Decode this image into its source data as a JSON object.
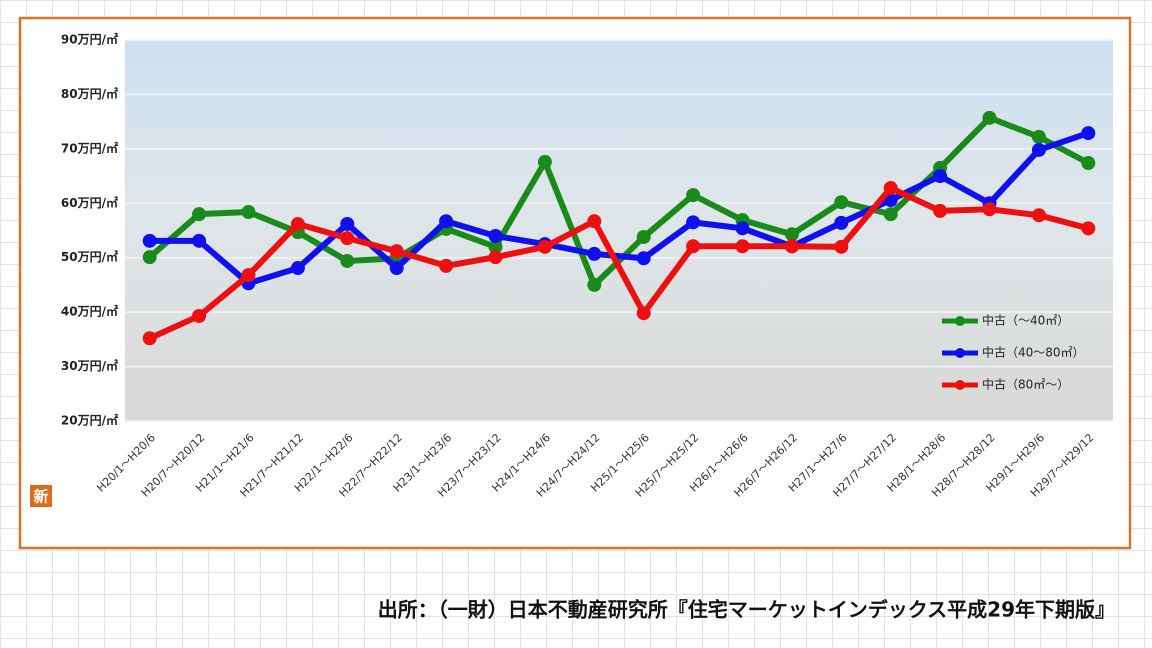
{
  "chart_data": {
    "type": "line",
    "categories": [
      "H20/1～H20/6",
      "H20/7～H20/12",
      "H21/1～H21/6",
      "H21/7～H21/12",
      "H22/1～H22/6",
      "H22/7～H22/12",
      "H23/1～H23/6",
      "H23/7～H23/12",
      "H24/1～H24/6",
      "H24/7～H24/12",
      "H25/1～H25/6",
      "H25/7～H25/12",
      "H26/1～H26/6",
      "H26/7～H26/12",
      "H27/1～H27/6",
      "H27/7～H27/12",
      "H28/1～H28/6",
      "H28/7～H28/12",
      "H29/1～H29/6",
      "H29/7～H29/12"
    ],
    "series": [
      {
        "name": "中古（～40㎡）",
        "color": "#1a8a1a",
        "values": [
          50.1,
          58.0,
          58.4,
          54.7,
          49.4,
          49.9,
          55.3,
          52.0,
          67.6,
          45.0,
          53.8,
          61.5,
          56.9,
          54.3,
          60.2,
          58.0,
          66.5,
          75.7,
          72.2,
          67.4
        ]
      },
      {
        "name": "中古（40～80㎡）",
        "color": "#1010ee",
        "values": [
          53.1,
          53.1,
          45.3,
          48.1,
          56.2,
          48.1,
          56.7,
          54.0,
          52.5,
          50.7,
          49.9,
          56.5,
          55.4,
          52.1,
          56.4,
          60.6,
          65.0,
          60.0,
          69.8,
          72.9
        ]
      },
      {
        "name": "中古（80㎡～）",
        "color": "#ee1010",
        "values": [
          35.2,
          39.3,
          46.8,
          56.2,
          53.6,
          51.2,
          48.5,
          50.1,
          52.0,
          56.7,
          39.8,
          52.1,
          52.1,
          52.1,
          52.0,
          62.8,
          58.6,
          58.9,
          57.8,
          55.4
        ]
      }
    ],
    "ylim": [
      20,
      90
    ],
    "yticks": [
      {
        "value": 20,
        "label": "20万円/㎡"
      },
      {
        "value": 30,
        "label": "30万円/㎡"
      },
      {
        "value": 40,
        "label": "40万円/㎡"
      },
      {
        "value": 50,
        "label": "50万円/㎡"
      },
      {
        "value": 60,
        "label": "60万円/㎡"
      },
      {
        "value": 70,
        "label": "70万円/㎡"
      },
      {
        "value": 80,
        "label": "80万円/㎡"
      },
      {
        "value": 90,
        "label": "90万円/㎡"
      }
    ],
    "grid": true,
    "legend": "right",
    "badge": "新",
    "source": "出所：（一財）日本不動産研究所『住宅マーケットインデックス平成29年下期版』"
  }
}
